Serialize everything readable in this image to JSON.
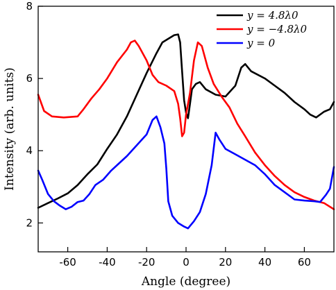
{
  "chart_data": {
    "type": "line",
    "xlabel": "Angle (degree)",
    "ylabel": "Intensity (arb. units)",
    "xlim": [
      -75,
      75
    ],
    "ylim": [
      1.2,
      8
    ],
    "xticks": [
      -60,
      -40,
      -20,
      0,
      20,
      40,
      60
    ],
    "yticks": [
      2,
      4,
      6,
      8
    ],
    "grid": false,
    "legend_placement": "top-right",
    "series": [
      {
        "name": "y = 4.8λ0",
        "color": "#000000",
        "points": [
          [
            -75,
            2.42
          ],
          [
            -70,
            2.55
          ],
          [
            -65,
            2.68
          ],
          [
            -60,
            2.82
          ],
          [
            -55,
            3.05
          ],
          [
            -50,
            3.35
          ],
          [
            -45,
            3.62
          ],
          [
            -40,
            4.05
          ],
          [
            -35,
            4.45
          ],
          [
            -30,
            4.95
          ],
          [
            -25,
            5.55
          ],
          [
            -20,
            6.15
          ],
          [
            -15,
            6.7
          ],
          [
            -12,
            7.0
          ],
          [
            -9,
            7.1
          ],
          [
            -6,
            7.2
          ],
          [
            -4,
            7.22
          ],
          [
            -3,
            7.0
          ],
          [
            -2,
            6.2
          ],
          [
            -1,
            5.4
          ],
          [
            0,
            5.05
          ],
          [
            1,
            4.9
          ],
          [
            2,
            5.3
          ],
          [
            3,
            5.7
          ],
          [
            5,
            5.85
          ],
          [
            7,
            5.9
          ],
          [
            10,
            5.7
          ],
          [
            15,
            5.55
          ],
          [
            20,
            5.5
          ],
          [
            25,
            5.8
          ],
          [
            28,
            6.3
          ],
          [
            30,
            6.4
          ],
          [
            33,
            6.2
          ],
          [
            40,
            6.0
          ],
          [
            45,
            5.8
          ],
          [
            50,
            5.6
          ],
          [
            55,
            5.35
          ],
          [
            60,
            5.15
          ],
          [
            63,
            5.0
          ],
          [
            66,
            4.92
          ],
          [
            70,
            5.08
          ],
          [
            73,
            5.15
          ],
          [
            75,
            5.35
          ]
        ]
      },
      {
        "name": "y = −4.8λ0",
        "color": "#ff0000",
        "points": [
          [
            -75,
            5.55
          ],
          [
            -72,
            5.1
          ],
          [
            -68,
            4.95
          ],
          [
            -62,
            4.92
          ],
          [
            -55,
            4.95
          ],
          [
            -52,
            5.15
          ],
          [
            -48,
            5.45
          ],
          [
            -44,
            5.7
          ],
          [
            -40,
            6.0
          ],
          [
            -35,
            6.45
          ],
          [
            -30,
            6.8
          ],
          [
            -28,
            7.0
          ],
          [
            -26,
            7.05
          ],
          [
            -24,
            6.9
          ],
          [
            -20,
            6.5
          ],
          [
            -17,
            6.1
          ],
          [
            -14,
            5.9
          ],
          [
            -10,
            5.8
          ],
          [
            -6,
            5.65
          ],
          [
            -4,
            5.3
          ],
          [
            -3,
            4.9
          ],
          [
            -2,
            4.4
          ],
          [
            -1,
            4.5
          ],
          [
            0,
            5.0
          ],
          [
            2,
            5.6
          ],
          [
            4,
            6.5
          ],
          [
            6,
            7.0
          ],
          [
            8,
            6.9
          ],
          [
            11,
            6.3
          ],
          [
            14,
            5.85
          ],
          [
            18,
            5.5
          ],
          [
            22,
            5.2
          ],
          [
            26,
            4.75
          ],
          [
            30,
            4.4
          ],
          [
            35,
            3.95
          ],
          [
            40,
            3.6
          ],
          [
            45,
            3.3
          ],
          [
            50,
            3.05
          ],
          [
            55,
            2.85
          ],
          [
            60,
            2.72
          ],
          [
            65,
            2.62
          ],
          [
            70,
            2.55
          ],
          [
            75,
            2.38
          ]
        ]
      },
      {
        "name": "y = 0",
        "color": "#0000ff",
        "points": [
          [
            -75,
            3.45
          ],
          [
            -73,
            3.2
          ],
          [
            -70,
            2.8
          ],
          [
            -67,
            2.6
          ],
          [
            -64,
            2.48
          ],
          [
            -61,
            2.38
          ],
          [
            -58,
            2.45
          ],
          [
            -55,
            2.58
          ],
          [
            -52,
            2.62
          ],
          [
            -49,
            2.8
          ],
          [
            -46,
            3.05
          ],
          [
            -42,
            3.2
          ],
          [
            -38,
            3.45
          ],
          [
            -34,
            3.65
          ],
          [
            -30,
            3.85
          ],
          [
            -25,
            4.15
          ],
          [
            -20,
            4.45
          ],
          [
            -17,
            4.85
          ],
          [
            -15,
            4.95
          ],
          [
            -13,
            4.65
          ],
          [
            -11,
            4.2
          ],
          [
            -10,
            3.5
          ],
          [
            -9,
            2.6
          ],
          [
            -7,
            2.2
          ],
          [
            -4,
            2.0
          ],
          [
            -1,
            1.9
          ],
          [
            1,
            1.85
          ],
          [
            4,
            2.05
          ],
          [
            7,
            2.3
          ],
          [
            10,
            2.8
          ],
          [
            13,
            3.6
          ],
          [
            15,
            4.5
          ],
          [
            17,
            4.3
          ],
          [
            20,
            4.05
          ],
          [
            25,
            3.9
          ],
          [
            30,
            3.75
          ],
          [
            35,
            3.6
          ],
          [
            40,
            3.35
          ],
          [
            45,
            3.05
          ],
          [
            50,
            2.85
          ],
          [
            55,
            2.65
          ],
          [
            60,
            2.62
          ],
          [
            65,
            2.6
          ],
          [
            68,
            2.58
          ],
          [
            71,
            2.78
          ],
          [
            73,
            2.95
          ],
          [
            75,
            3.55
          ]
        ]
      }
    ]
  }
}
